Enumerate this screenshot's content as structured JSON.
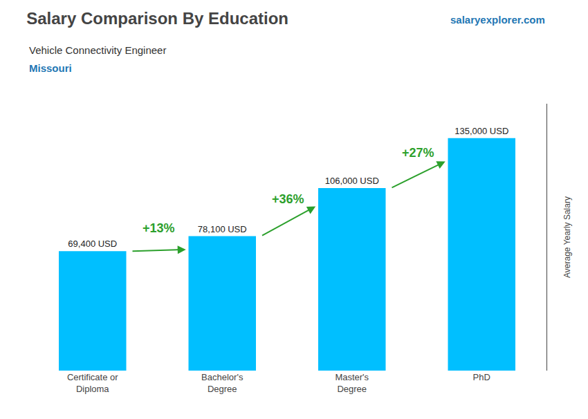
{
  "chart_data": {
    "type": "bar",
    "title": "Salary Comparison By Education",
    "subtitle": [
      "Vehicle Connectivity Engineer",
      "Missouri"
    ],
    "annotations": [
      "salaryexplorer.com"
    ],
    "ylabel": "Average Yearly Salary",
    "categories": [
      "Certificate or\nDiploma",
      "Bachelor's\nDegree",
      "Master's\nDegree",
      "PhD"
    ],
    "values": [
      69400,
      78100,
      106000,
      135000
    ],
    "value_labels": [
      "69,400 USD",
      "78,100 USD",
      "106,000 USD",
      "135,000 USD"
    ],
    "change_labels": [
      "+13%",
      "+36%",
      "+27%"
    ],
    "color": "#00BFFF",
    "ylim": [
      0,
      155000
    ],
    "data_labels": true,
    "tick_labels": "x",
    "grid": false
  }
}
